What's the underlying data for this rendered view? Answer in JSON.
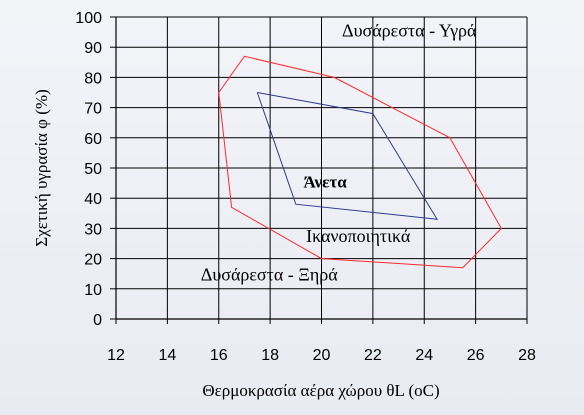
{
  "chart_data": {
    "type": "line",
    "xlabel": "Θερμοκρασία αέρα χώρου θL (oC)",
    "ylabel": "Σχετική υγρασία φ (%)",
    "xlim": [
      12,
      28
    ],
    "ylim": [
      0,
      100
    ],
    "x_ticks": [
      "12",
      "14",
      "16",
      "18",
      "20",
      "22",
      "24",
      "26",
      "28"
    ],
    "y_ticks": [
      "0",
      "10",
      "20",
      "30",
      "40",
      "50",
      "60",
      "70",
      "80",
      "90",
      "100"
    ],
    "grid": true,
    "series": [
      {
        "color": "#ff2a2a",
        "closed": true,
        "points": [
          [
            16,
            75
          ],
          [
            17,
            87
          ],
          [
            20.5,
            80
          ],
          [
            25,
            60
          ],
          [
            27,
            30
          ],
          [
            25.5,
            17
          ],
          [
            20,
            20
          ],
          [
            16.5,
            37
          ],
          [
            16,
            75
          ]
        ]
      },
      {
        "color": "#2f3a8f",
        "closed": true,
        "points": [
          [
            17.5,
            75
          ],
          [
            22,
            68
          ],
          [
            24.5,
            33
          ],
          [
            19,
            38
          ],
          [
            17.5,
            75
          ]
        ]
      }
    ],
    "annotations": [
      {
        "text": "Δυσάρεστα - Υγρά",
        "x": 20.8,
        "y": 93.5,
        "style": "normal"
      },
      {
        "text": "Άνετα",
        "x": 19.3,
        "y": 43.5,
        "style": "bold"
      },
      {
        "text": "Ικανοποιητικά",
        "x": 19.4,
        "y": 25.5,
        "style": "normal"
      },
      {
        "text": "Δυσάρεστα - Ξηρά",
        "x": 15.3,
        "y": 12.8,
        "style": "normal"
      }
    ]
  }
}
